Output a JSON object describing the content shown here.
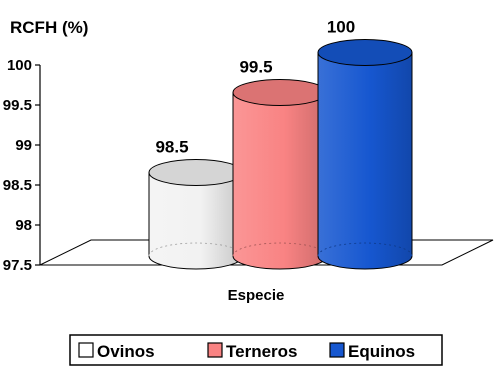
{
  "chart_data": {
    "type": "bar",
    "style": "3d-cylinder",
    "ylabel": "RCFH (%)",
    "xlabel": "Especie",
    "ylim": [
      97.5,
      100
    ],
    "yticks": [
      "97.5",
      "98",
      "98.5",
      "99",
      "99.5",
      "100"
    ],
    "categories": [
      "Ovinos",
      "Terneros",
      "Equinos"
    ],
    "values": [
      98.5,
      99.5,
      100
    ],
    "value_labels": [
      "98.5",
      "99.5",
      "100"
    ],
    "colors": [
      "#f2f2f2",
      "#f98383",
      "#1657d0"
    ],
    "legend": {
      "position": "bottom",
      "items": [
        {
          "label": "Ovinos",
          "color": "#ffffff"
        },
        {
          "label": "Terneros",
          "color": "#f98383"
        },
        {
          "label": "Equinos",
          "color": "#1657d0"
        }
      ]
    },
    "grid": false
  }
}
